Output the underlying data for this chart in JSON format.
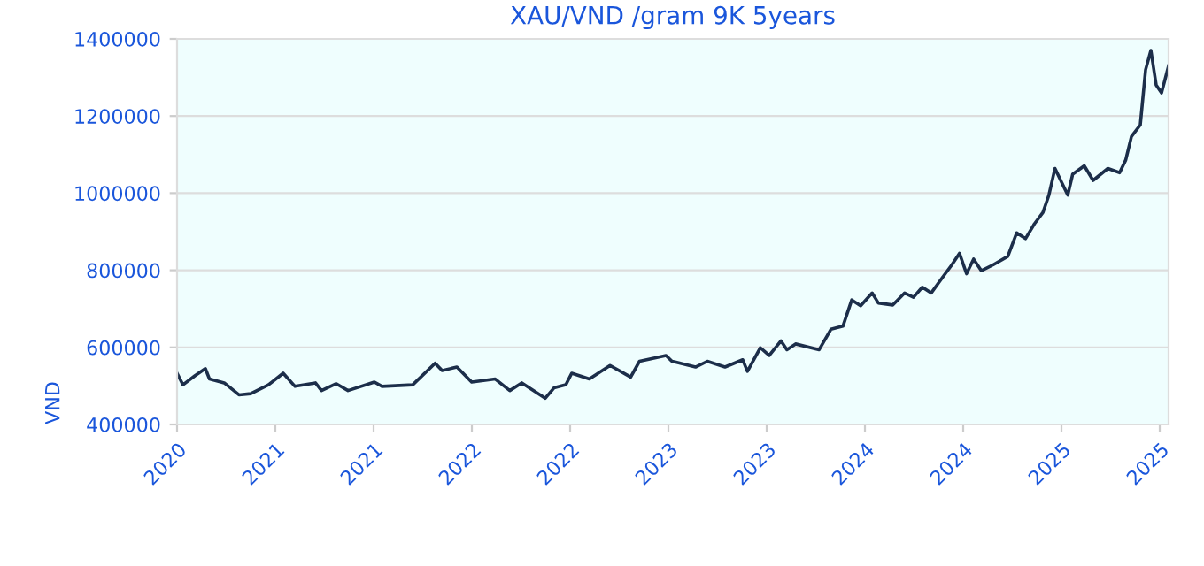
{
  "chart_data": {
    "type": "line",
    "title": "XAU/VND /gram 9K 5years",
    "ylabel": "VND",
    "xlim": [
      2020.5,
      2025.545
    ],
    "ylim": [
      400000,
      1400000
    ],
    "xticks": [
      {
        "value": 2020.5,
        "label": "2020"
      },
      {
        "value": 2021.0,
        "label": "2021"
      },
      {
        "value": 2021.5,
        "label": "2021"
      },
      {
        "value": 2022.0,
        "label": "2022"
      },
      {
        "value": 2022.5,
        "label": "2022"
      },
      {
        "value": 2023.0,
        "label": "2023"
      },
      {
        "value": 2023.5,
        "label": "2023"
      },
      {
        "value": 2024.0,
        "label": "2024"
      },
      {
        "value": 2024.5,
        "label": "2024"
      },
      {
        "value": 2025.0,
        "label": "2025"
      },
      {
        "value": 2025.5,
        "label": "2025"
      }
    ],
    "yticks": [
      400000,
      600000,
      800000,
      1000000,
      1200000,
      1400000
    ],
    "grid": "y",
    "marker": "none",
    "line_style": "solid",
    "series": [
      {
        "color": "#1c2e4a",
        "x": [
          2020.5,
          2020.53,
          2020.59,
          2020.644,
          2020.665,
          2020.74,
          2020.815,
          2020.875,
          2020.965,
          2021.04,
          2021.1,
          2021.204,
          2021.235,
          2021.309,
          2021.37,
          2021.504,
          2021.543,
          2021.699,
          2021.813,
          2021.849,
          2021.924,
          2021.999,
          2022.119,
          2022.193,
          2022.254,
          2022.373,
          2022.418,
          2022.478,
          2022.508,
          2022.598,
          2022.703,
          2022.808,
          2022.853,
          2022.988,
          2023.018,
          2023.138,
          2023.198,
          2023.288,
          2023.378,
          2023.402,
          2023.468,
          2023.513,
          2023.573,
          2023.603,
          2023.647,
          2023.767,
          2023.827,
          2023.888,
          2023.933,
          2023.978,
          2024.037,
          2024.068,
          2024.142,
          2024.202,
          2024.247,
          2024.292,
          2024.337,
          2024.397,
          2024.442,
          2024.481,
          2024.517,
          2024.553,
          2024.592,
          2024.652,
          2024.727,
          2024.772,
          2024.817,
          2024.862,
          2024.906,
          2024.936,
          2024.967,
          2024.996,
          2025.032,
          2025.057,
          2025.116,
          2025.161,
          2025.236,
          2025.296,
          2025.327,
          2025.356,
          2025.401,
          2025.428,
          2025.455,
          2025.482,
          2025.509,
          2025.545
        ],
        "values": [
          533000,
          503000,
          526000,
          545000,
          518000,
          508000,
          477000,
          480000,
          503000,
          533000,
          499000,
          508000,
          488000,
          506000,
          488000,
          510000,
          499000,
          503000,
          559000,
          540000,
          549000,
          510000,
          518000,
          488000,
          508000,
          468000,
          495000,
          503000,
          533000,
          518000,
          553000,
          523000,
          564000,
          579000,
          564000,
          549000,
          564000,
          549000,
          568000,
          538000,
          599000,
          579000,
          617000,
          594000,
          609000,
          594000,
          647000,
          655000,
          723000,
          708000,
          741000,
          715000,
          710000,
          741000,
          730000,
          756000,
          741000,
          783000,
          814000,
          844000,
          791000,
          829000,
          799000,
          814000,
          836000,
          897000,
          882000,
          920000,
          950000,
          995000,
          1064000,
          1033000,
          995000,
          1049000,
          1071000,
          1033000,
          1064000,
          1053000,
          1086000,
          1147000,
          1177000,
          1320000,
          1370000,
          1280000,
          1260000,
          1330000
        ]
      }
    ]
  }
}
